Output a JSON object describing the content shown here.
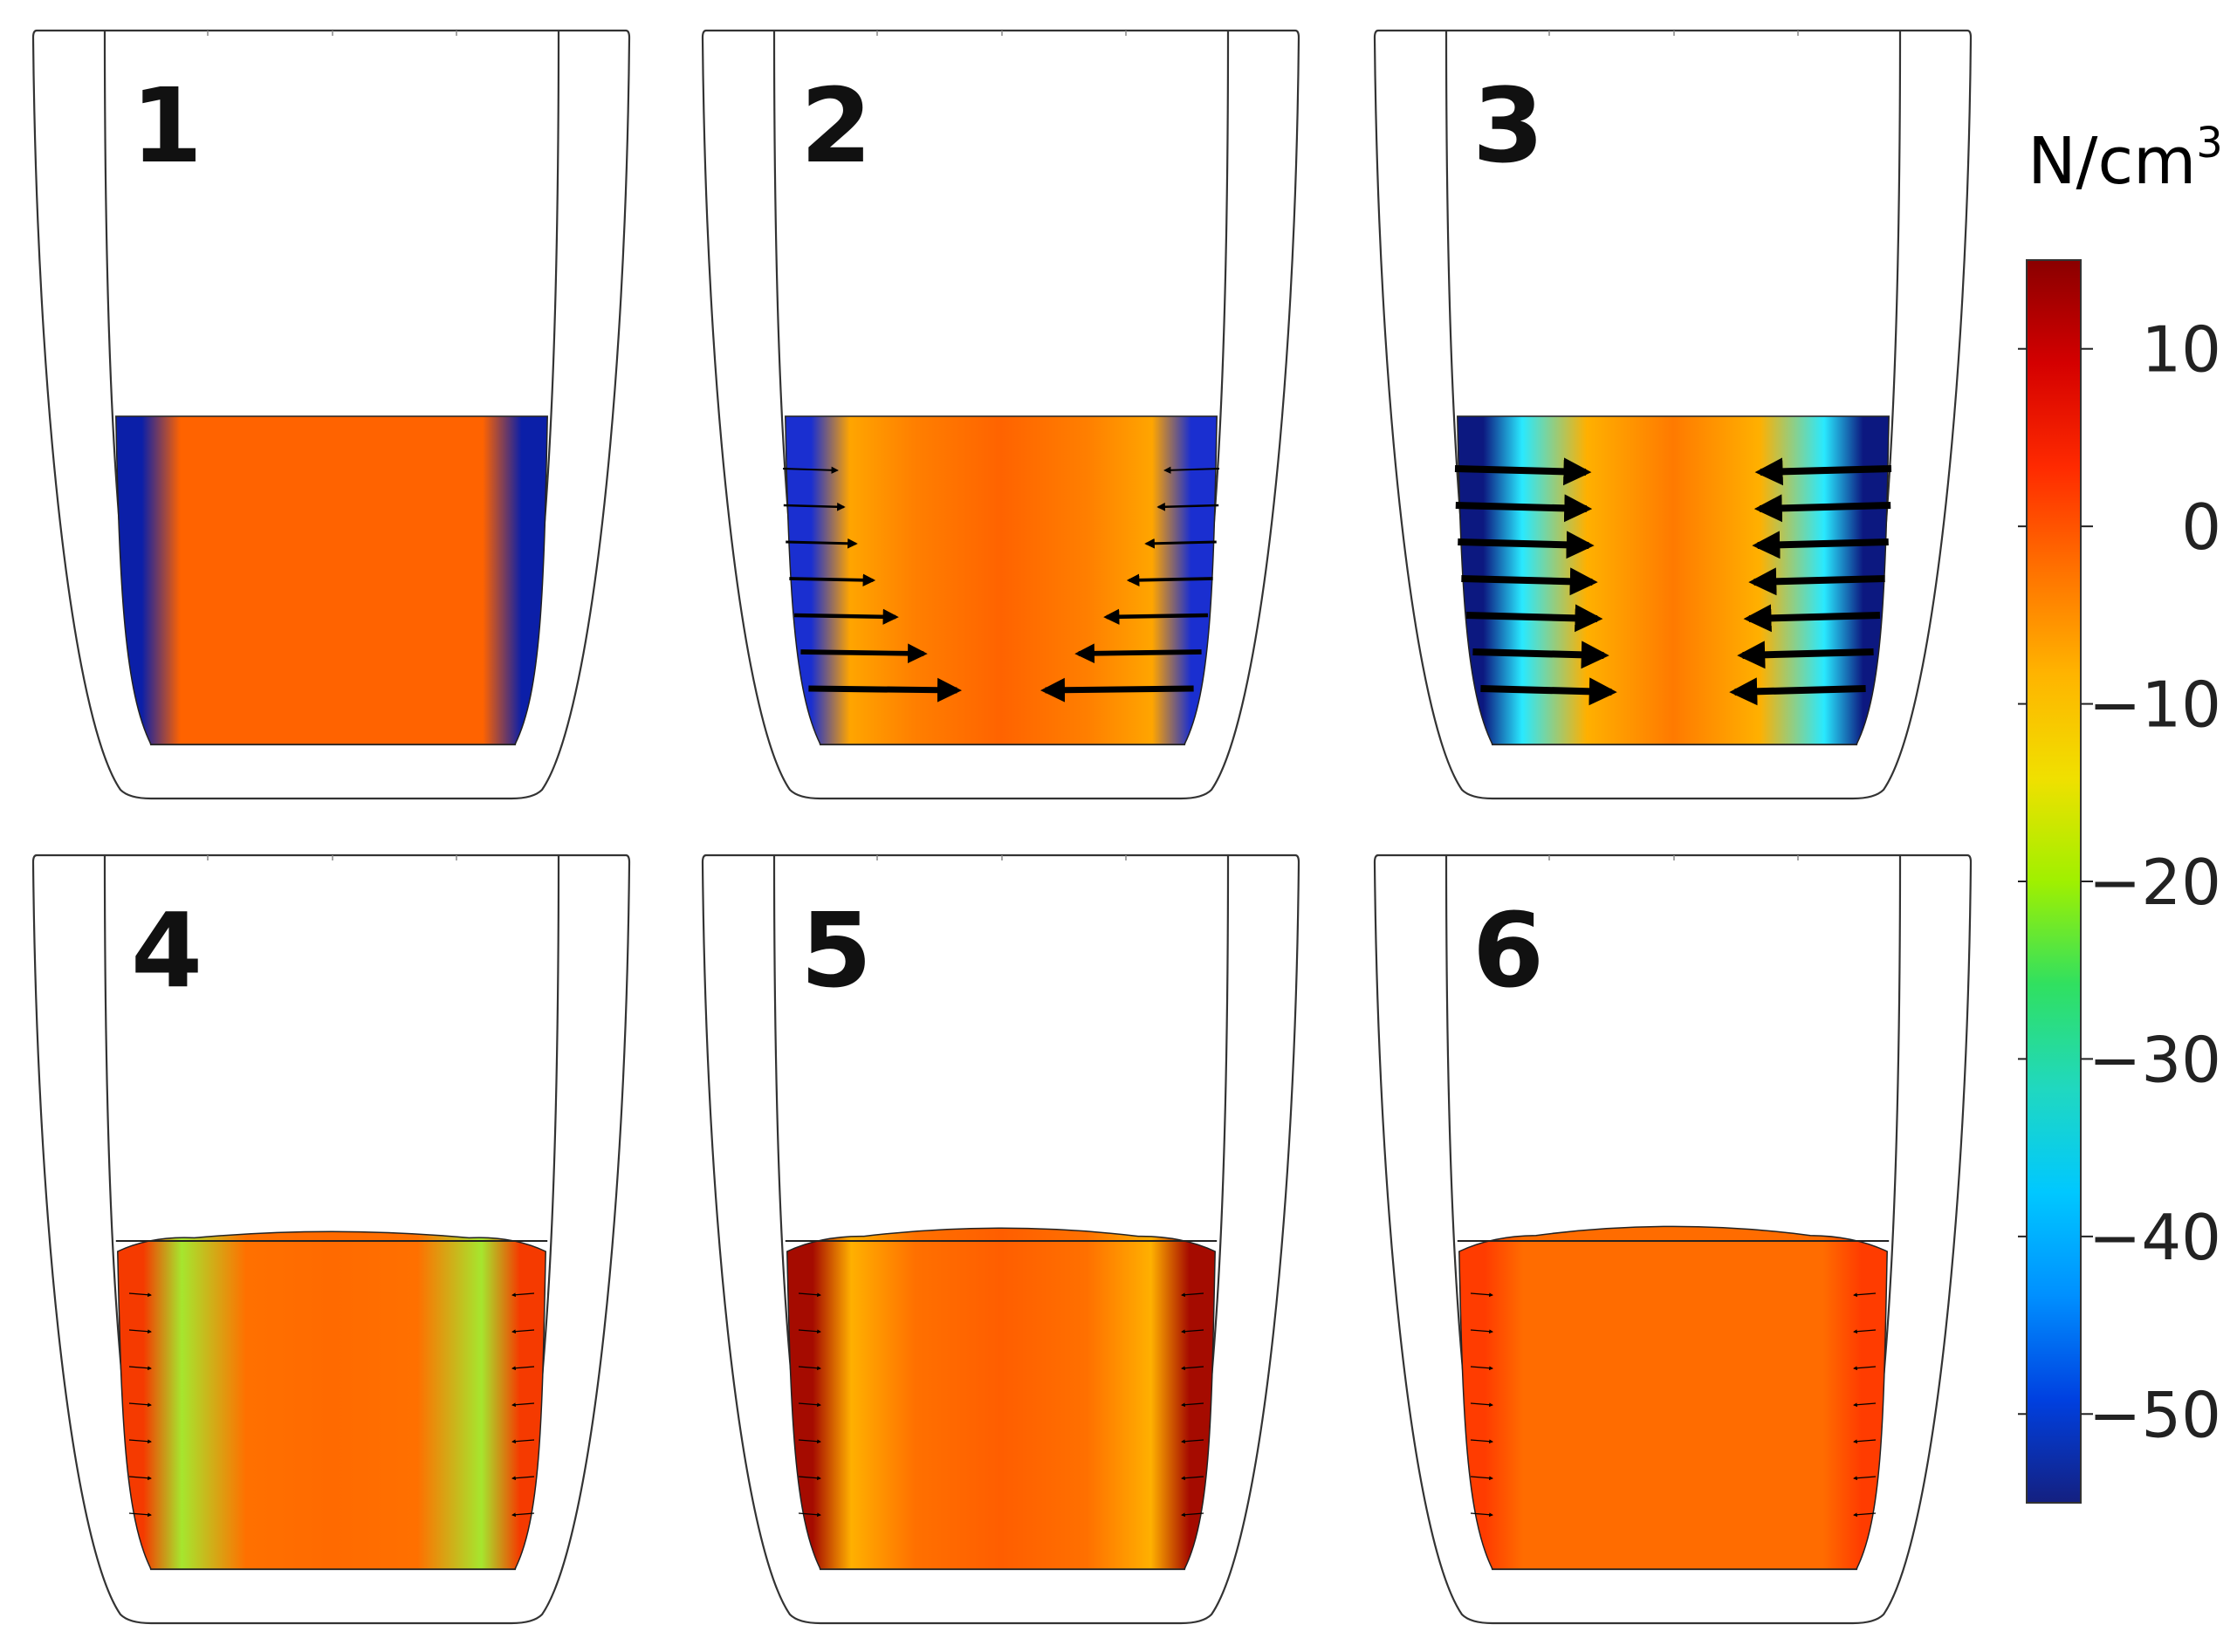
{
  "panels": [
    {
      "label": "1",
      "stage": "initial",
      "arrow_strength": 0,
      "dome": 0,
      "core": "#ff6300",
      "wall": "#0b1fa8",
      "mid": "#ff6300",
      "band": "#ff6300"
    },
    {
      "label": "2",
      "stage": "pinch",
      "arrow_strength": 0.55,
      "dome": 0,
      "core": "#ff6300",
      "wall": "#1a2fd0",
      "mid": "#ffa500",
      "band": "#ff7f00"
    },
    {
      "label": "3",
      "stage": "pinch-strong",
      "arrow_strength": 1.0,
      "dome": 0,
      "core": "#ff7a00",
      "wall": "#0c1880",
      "mid": "#29e9ff",
      "band": "#ffb000"
    },
    {
      "label": "4",
      "stage": "relax",
      "arrow_strength": 0.08,
      "dome": 0.4,
      "core": "#ff6a00",
      "wall": "#f53a00",
      "mid": "#a6e62e",
      "band": "#ff7000"
    },
    {
      "label": "5",
      "stage": "relax-late",
      "arrow_strength": 0.12,
      "dome": 0.6,
      "core": "#ff5e00",
      "wall": "#a50b00",
      "mid": "#ffb000",
      "band": "#ff7000"
    },
    {
      "label": "6",
      "stage": "settled",
      "arrow_strength": 0.02,
      "dome": 0.7,
      "core": "#ff6c00",
      "wall": "#ff3c00",
      "mid": "#ff6c00",
      "band": "#ff6c00"
    }
  ],
  "colorbar": {
    "unit_base": "N/cm",
    "unit_exponent": "3",
    "range": [
      -55,
      15
    ],
    "ticks": [
      {
        "value": 10,
        "label": "10"
      },
      {
        "value": 0,
        "label": "0"
      },
      {
        "value": -10,
        "label": "−10"
      },
      {
        "value": -20,
        "label": "−20"
      },
      {
        "value": -30,
        "label": "−30"
      },
      {
        "value": -40,
        "label": "−40"
      },
      {
        "value": -50,
        "label": "−50"
      }
    ],
    "stops": [
      "#8a0000",
      "#d40000",
      "#ff2a00",
      "#ff7200",
      "#ffb400",
      "#f0e000",
      "#a0f000",
      "#30e060",
      "#20d8c0",
      "#00c8ff",
      "#0090ff",
      "#0040e0",
      "#142080"
    ]
  }
}
